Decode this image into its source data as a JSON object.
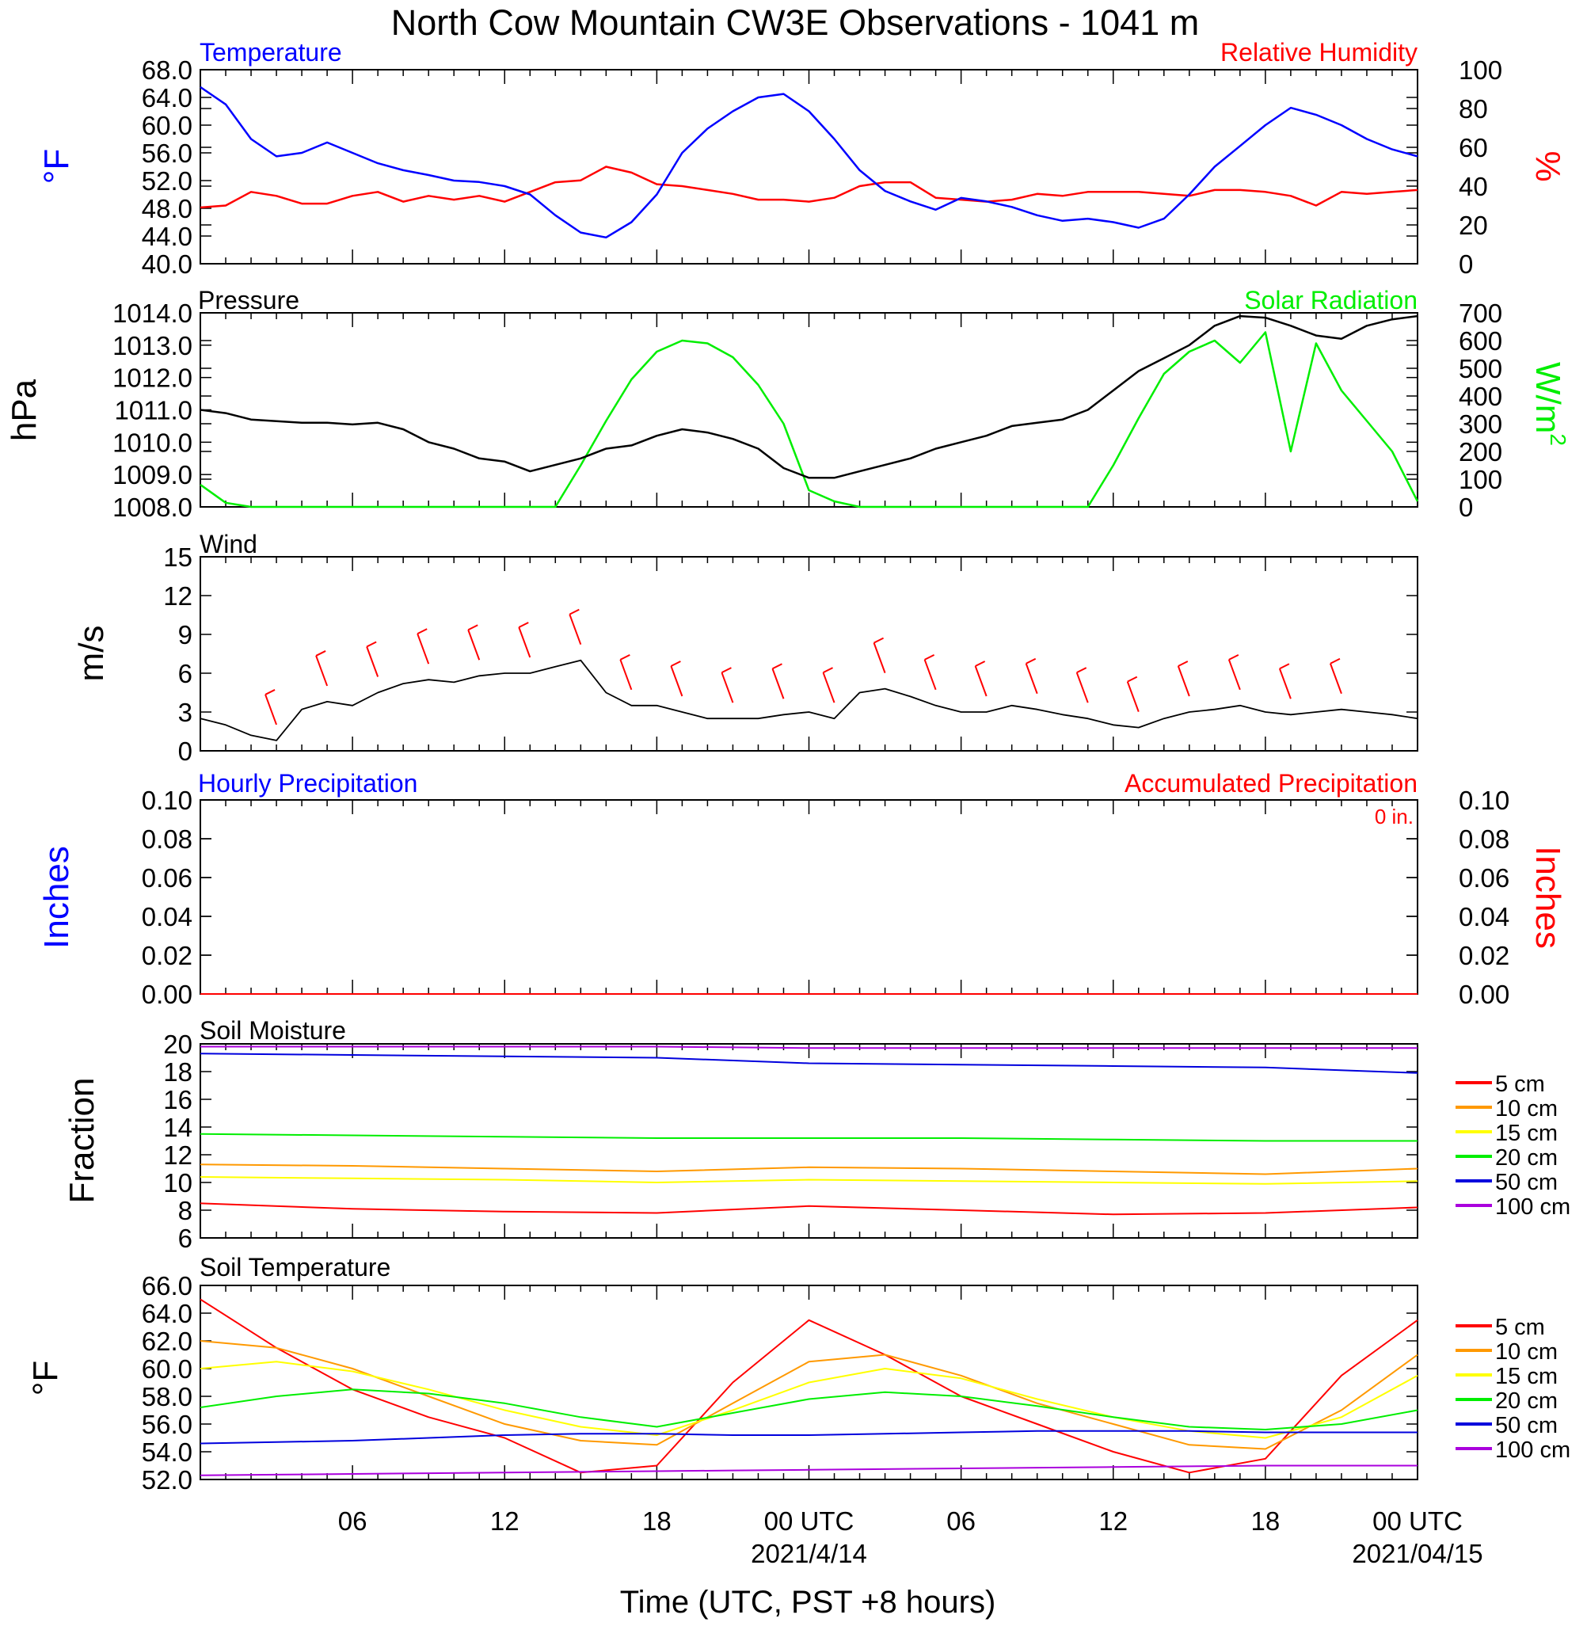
{
  "figure_title": "North Cow Mountain CW3E Observations - 1041 m",
  "x_axis": {
    "title": "Time (UTC, PST +8 hours)",
    "tick_labels": [
      "06",
      "12",
      "18",
      "00 UTC",
      "06",
      "12",
      "18",
      "00 UTC"
    ],
    "date_labels": [
      "2021/4/14",
      "2021/04/15"
    ]
  },
  "panels": {
    "temp_rh": {
      "left_label": "Temperature",
      "right_label": "Relative Humidity",
      "left_unit": "°F",
      "right_unit": "%",
      "left_ticks": [
        "40.0",
        "44.0",
        "48.0",
        "52.0",
        "56.0",
        "60.0",
        "64.0",
        "68.0"
      ],
      "right_ticks": [
        "0",
        "20",
        "40",
        "60",
        "80",
        "100"
      ],
      "left_color": "#0000ff",
      "right_color": "#ff0000"
    },
    "pressure_solar": {
      "left_label": "Pressure",
      "right_label": "Solar Radiation",
      "left_unit": "hPa",
      "right_unit": "W/m",
      "right_unit_sup": "2",
      "left_ticks": [
        "1008.0",
        "1009.0",
        "1010.0",
        "1011.0",
        "1012.0",
        "1013.0",
        "1014.0"
      ],
      "right_ticks": [
        "0",
        "100",
        "200",
        "300",
        "400",
        "500",
        "600",
        "700"
      ],
      "left_color": "#000000",
      "right_color": "#00ee00"
    },
    "wind": {
      "label": "Wind",
      "unit": "m/s",
      "ticks": [
        "0",
        "3",
        "6",
        "9",
        "12",
        "15"
      ],
      "barb_color": "#ff0000"
    },
    "precip": {
      "left_label": "Hourly Precipitation",
      "right_label": "Accumulated Precipitation",
      "annotation": "0 in.",
      "left_unit": "Inches",
      "right_unit": "Inches",
      "ticks": [
        "0.00",
        "0.02",
        "0.04",
        "0.06",
        "0.08",
        "0.10"
      ],
      "left_color": "#0000ff",
      "right_color": "#ff0000"
    },
    "soil_moisture": {
      "label": "Soil Moisture",
      "unit": "Fraction",
      "ticks": [
        "6",
        "8",
        "10",
        "12",
        "14",
        "16",
        "18",
        "20"
      ]
    },
    "soil_temp": {
      "label": "Soil Temperature",
      "unit": "°F",
      "ticks": [
        "52.0",
        "54.0",
        "56.0",
        "58.0",
        "60.0",
        "62.0",
        "64.0",
        "66.0"
      ]
    }
  },
  "legend": [
    {
      "name": "5 cm",
      "color": "#ff0000"
    },
    {
      "name": "10 cm",
      "color": "#ff9900"
    },
    {
      "name": "15 cm",
      "color": "#ffff00"
    },
    {
      "name": "20 cm",
      "color": "#00ee00"
    },
    {
      "name": "50 cm",
      "color": "#0000dd"
    },
    {
      "name": "100 cm",
      "color": "#aa00dd"
    }
  ],
  "chart_data": [
    {
      "type": "line",
      "title": "Temperature / Relative Humidity",
      "x_hours": [
        0,
        1,
        2,
        3,
        4,
        5,
        6,
        7,
        8,
        9,
        10,
        11,
        12,
        13,
        14,
        15,
        16,
        17,
        18,
        19,
        20,
        21,
        22,
        23,
        24,
        25,
        26,
        27,
        28,
        29,
        30,
        31,
        32,
        33,
        34,
        35,
        36,
        37,
        38,
        39,
        40,
        41,
        42,
        43,
        44,
        45,
        46,
        47,
        48
      ],
      "series": [
        {
          "name": "Temperature",
          "axis": "left",
          "units": "°F",
          "values": [
            65.5,
            63.0,
            58.0,
            55.5,
            56.0,
            57.5,
            56.0,
            54.5,
            53.5,
            52.8,
            52.0,
            51.8,
            51.2,
            50.0,
            47.0,
            44.5,
            43.8,
            46.0,
            50.0,
            56.0,
            59.5,
            62.0,
            64.0,
            64.5,
            62.0,
            58.0,
            53.5,
            50.5,
            49.0,
            47.8,
            49.5,
            49.0,
            48.2,
            47.0,
            46.2,
            46.5,
            46.0,
            45.2,
            46.5,
            50.0,
            54.0,
            57.0,
            60.0,
            62.5,
            61.5,
            60.0,
            58.0,
            56.5,
            55.5
          ]
        },
        {
          "name": "Relative Humidity",
          "axis": "right",
          "units": "%",
          "values": [
            29,
            30,
            37,
            35,
            31,
            31,
            35,
            37,
            32,
            35,
            33,
            35,
            32,
            37,
            42,
            43,
            50,
            47,
            41,
            40,
            38,
            36,
            33,
            33,
            32,
            34,
            40,
            42,
            42,
            34,
            33,
            32,
            33,
            36,
            35,
            37,
            37,
            37,
            36,
            35,
            38,
            38,
            37,
            35,
            30,
            37,
            36,
            37,
            38
          ]
        }
      ],
      "left_ylim": [
        40,
        68
      ],
      "right_ylim": [
        0,
        100
      ]
    },
    {
      "type": "line",
      "title": "Pressure / Solar Radiation",
      "x_hours": [
        0,
        1,
        2,
        3,
        4,
        5,
        6,
        7,
        8,
        9,
        10,
        11,
        12,
        13,
        14,
        15,
        16,
        17,
        18,
        19,
        20,
        21,
        22,
        23,
        24,
        25,
        26,
        27,
        28,
        29,
        30,
        31,
        32,
        33,
        34,
        35,
        36,
        37,
        38,
        39,
        40,
        41,
        42,
        43,
        44,
        45,
        46,
        47,
        48
      ],
      "series": [
        {
          "name": "Pressure",
          "axis": "left",
          "units": "hPa",
          "values": [
            1011.0,
            1010.9,
            1010.7,
            1010.65,
            1010.6,
            1010.6,
            1010.55,
            1010.6,
            1010.4,
            1010.0,
            1009.8,
            1009.5,
            1009.4,
            1009.1,
            1009.3,
            1009.5,
            1009.8,
            1009.9,
            1010.2,
            1010.4,
            1010.3,
            1010.1,
            1009.8,
            1009.2,
            1008.9,
            1008.9,
            1009.1,
            1009.3,
            1009.5,
            1009.8,
            1010.0,
            1010.2,
            1010.5,
            1010.6,
            1010.7,
            1011.0,
            1011.6,
            1012.2,
            1012.6,
            1013.0,
            1013.6,
            1013.9,
            1013.85,
            1013.6,
            1013.3,
            1013.2,
            1013.6,
            1013.8,
            1013.9
          ]
        },
        {
          "name": "Solar Radiation",
          "axis": "right",
          "units": "W/m2",
          "values": [
            80,
            15,
            0,
            0,
            0,
            0,
            0,
            0,
            0,
            0,
            0,
            0,
            0,
            0,
            0,
            150,
            310,
            460,
            560,
            600,
            590,
            540,
            440,
            300,
            60,
            20,
            0,
            0,
            0,
            0,
            0,
            0,
            0,
            0,
            0,
            0,
            150,
            320,
            480,
            560,
            600,
            520,
            630,
            200,
            590,
            420,
            310,
            200,
            20
          ]
        }
      ],
      "left_ylim": [
        1008,
        1014
      ],
      "right_ylim": [
        0,
        700
      ]
    },
    {
      "type": "line",
      "title": "Wind",
      "x_hours": [
        0,
        1,
        2,
        3,
        4,
        5,
        6,
        7,
        8,
        9,
        10,
        11,
        12,
        13,
        14,
        15,
        16,
        17,
        18,
        19,
        20,
        21,
        22,
        23,
        24,
        25,
        26,
        27,
        28,
        29,
        30,
        31,
        32,
        33,
        34,
        35,
        36,
        37,
        38,
        39,
        40,
        41,
        42,
        43,
        44,
        45,
        46,
        47,
        48
      ],
      "series": [
        {
          "name": "Wind Speed",
          "units": "m/s",
          "values": [
            2.5,
            2.0,
            1.2,
            0.8,
            3.2,
            3.8,
            3.5,
            4.5,
            5.2,
            5.5,
            5.3,
            5.8,
            6.0,
            6.0,
            6.5,
            7.0,
            4.5,
            3.5,
            3.5,
            3.0,
            2.5,
            2.5,
            2.5,
            2.8,
            3.0,
            2.5,
            4.5,
            4.8,
            4.2,
            3.5,
            3.0,
            3.0,
            3.5,
            3.2,
            2.8,
            2.5,
            2.0,
            1.8,
            2.5,
            3.0,
            3.2,
            3.5,
            3.0,
            2.8,
            3.0,
            3.2,
            3.0,
            2.8,
            2.5
          ]
        }
      ],
      "ylim": [
        0,
        15
      ]
    },
    {
      "type": "line",
      "title": "Precipitation",
      "x_hours": [
        0,
        48
      ],
      "series": [
        {
          "name": "Hourly Precipitation",
          "units": "in",
          "values": [
            0,
            0
          ]
        },
        {
          "name": "Accumulated Precipitation",
          "units": "in",
          "values": [
            0,
            0
          ]
        }
      ],
      "ylim": [
        0,
        0.1
      ]
    },
    {
      "type": "line",
      "title": "Soil Moisture",
      "x_hours": [
        0,
        6,
        12,
        18,
        24,
        30,
        36,
        42,
        48
      ],
      "series": [
        {
          "name": "5 cm",
          "values": [
            8.5,
            8.1,
            7.9,
            7.8,
            8.3,
            8.0,
            7.7,
            7.8,
            8.2
          ]
        },
        {
          "name": "10 cm",
          "values": [
            11.3,
            11.2,
            11.0,
            10.8,
            11.1,
            11.0,
            10.8,
            10.6,
            11.0
          ]
        },
        {
          "name": "15 cm",
          "values": [
            10.4,
            10.3,
            10.2,
            10.0,
            10.2,
            10.1,
            10.0,
            9.9,
            10.1
          ]
        },
        {
          "name": "20 cm",
          "values": [
            13.5,
            13.4,
            13.3,
            13.2,
            13.2,
            13.2,
            13.1,
            13.0,
            13.0
          ]
        },
        {
          "name": "50 cm",
          "values": [
            19.3,
            19.2,
            19.1,
            19.0,
            18.6,
            18.5,
            18.4,
            18.3,
            17.9
          ]
        },
        {
          "name": "100 cm",
          "values": [
            19.8,
            19.8,
            19.8,
            19.8,
            19.7,
            19.7,
            19.7,
            19.7,
            19.7
          ]
        }
      ],
      "ylim": [
        6,
        20
      ]
    },
    {
      "type": "line",
      "title": "Soil Temperature",
      "x_hours": [
        0,
        3,
        6,
        9,
        12,
        15,
        18,
        21,
        24,
        27,
        30,
        33,
        36,
        39,
        42,
        45,
        48
      ],
      "series": [
        {
          "name": "5 cm",
          "values": [
            65.0,
            61.5,
            58.5,
            56.5,
            55.0,
            52.5,
            53.0,
            59.0,
            63.5,
            61.0,
            58.0,
            56.0,
            54.0,
            52.5,
            53.5,
            59.5,
            63.5
          ]
        },
        {
          "name": "10 cm",
          "values": [
            62.0,
            61.5,
            60.0,
            58.0,
            56.0,
            54.8,
            54.5,
            57.5,
            60.5,
            61.0,
            59.5,
            57.5,
            56.0,
            54.5,
            54.2,
            57.0,
            61.0
          ]
        },
        {
          "name": "15 cm",
          "values": [
            60.0,
            60.5,
            59.8,
            58.5,
            57.0,
            55.8,
            55.2,
            57.0,
            59.0,
            60.0,
            59.3,
            57.8,
            56.5,
            55.5,
            55.0,
            56.5,
            59.5
          ]
        },
        {
          "name": "20 cm",
          "values": [
            57.2,
            58.0,
            58.5,
            58.2,
            57.5,
            56.5,
            55.8,
            56.8,
            57.8,
            58.3,
            58.0,
            57.3,
            56.5,
            55.8,
            55.6,
            56.0,
            57.0
          ]
        },
        {
          "name": "50 cm",
          "values": [
            54.6,
            54.7,
            54.8,
            55.0,
            55.2,
            55.3,
            55.3,
            55.2,
            55.2,
            55.3,
            55.4,
            55.5,
            55.5,
            55.5,
            55.4,
            55.4,
            55.4
          ]
        },
        {
          "name": "100 cm",
          "values": [
            52.3,
            52.35,
            52.4,
            52.45,
            52.5,
            52.55,
            52.6,
            52.65,
            52.7,
            52.75,
            52.8,
            52.85,
            52.9,
            52.95,
            53.0,
            53.0,
            53.0
          ]
        }
      ],
      "ylim": [
        52,
        66
      ]
    }
  ]
}
